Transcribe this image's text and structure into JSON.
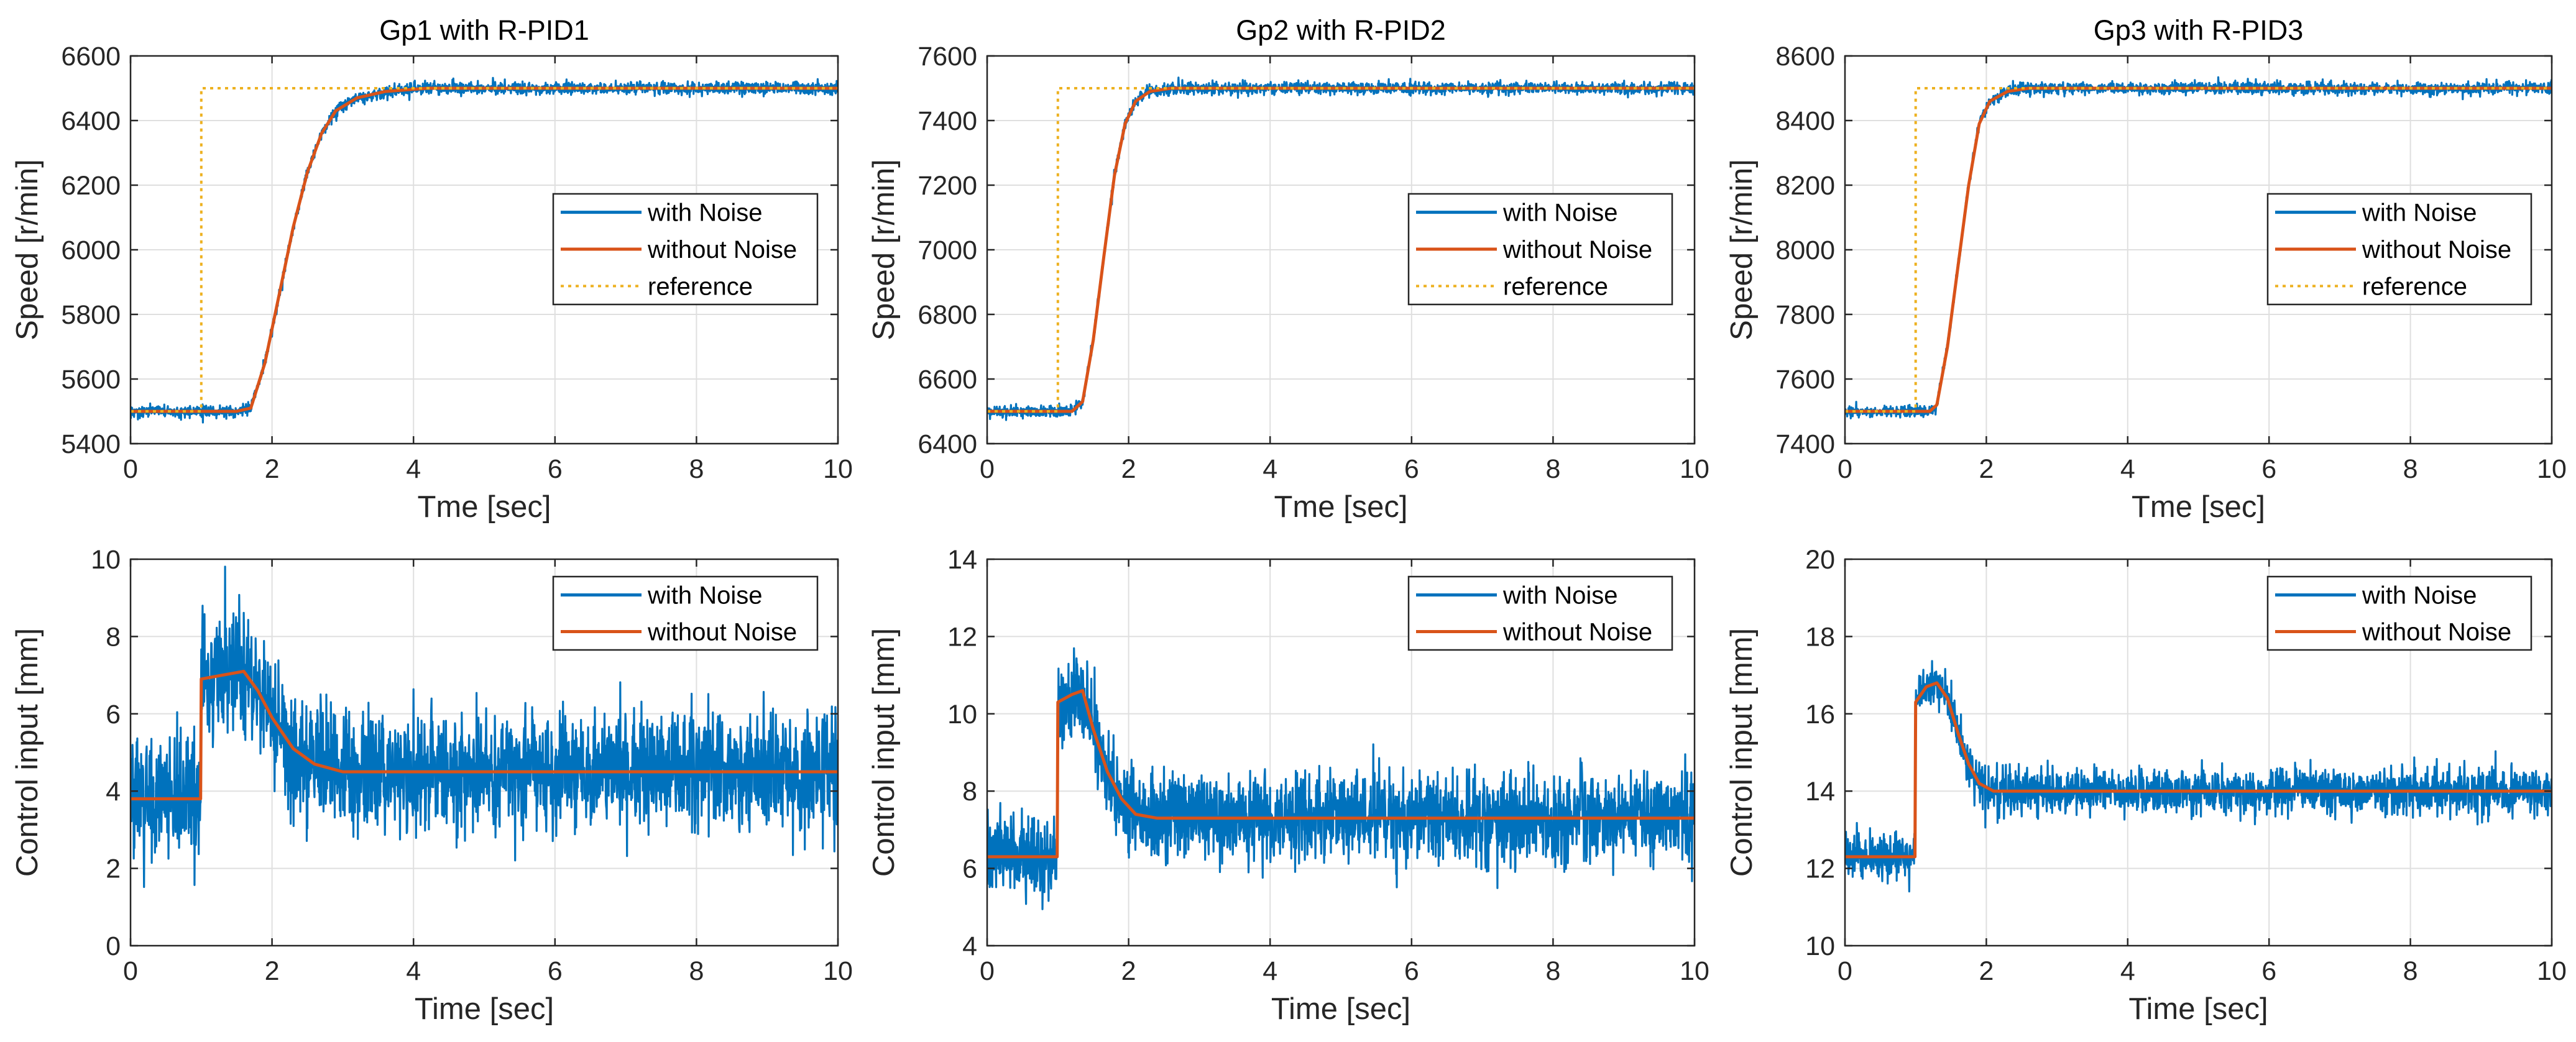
{
  "figure": {
    "layout": "2 rows x 3 columns"
  },
  "colors": {
    "with_noise": "#0072BD",
    "without_noise": "#D95319",
    "reference": "#EDB120",
    "grid": "#dfdfdf",
    "axis": "#262626"
  },
  "chart_data": [
    {
      "type": "line",
      "title": "Gp1 with R-PID1",
      "xlabel": "Tme [sec]",
      "ylabel": "Speed [r/min]",
      "xlim": [
        0,
        10
      ],
      "ylim": [
        5400,
        6600
      ],
      "xticks": [
        0,
        2,
        4,
        6,
        8,
        10
      ],
      "yticks": [
        5400,
        5600,
        5800,
        6000,
        6200,
        6400,
        6600
      ],
      "legend_position": "right",
      "series": [
        {
          "name": "with Noise",
          "style": "noisy",
          "noise_amp": 9,
          "points": [
            [
              0,
              5500
            ],
            [
              1.5,
              5500
            ],
            [
              1.7,
              5510
            ],
            [
              1.9,
              5650
            ],
            [
              2.1,
              5860
            ],
            [
              2.3,
              6070
            ],
            [
              2.5,
              6240
            ],
            [
              2.7,
              6360
            ],
            [
              2.9,
              6430
            ],
            [
              3.2,
              6470
            ],
            [
              3.6,
              6490
            ],
            [
              4.2,
              6500
            ],
            [
              10,
              6500
            ]
          ]
        },
        {
          "name": "without Noise",
          "style": "solid",
          "points": [
            [
              0,
              5500
            ],
            [
              1.5,
              5500
            ],
            [
              1.7,
              5510
            ],
            [
              1.9,
              5650
            ],
            [
              2.1,
              5860
            ],
            [
              2.3,
              6070
            ],
            [
              2.5,
              6240
            ],
            [
              2.7,
              6360
            ],
            [
              2.9,
              6430
            ],
            [
              3.2,
              6470
            ],
            [
              3.6,
              6490
            ],
            [
              4.2,
              6500
            ],
            [
              10,
              6500
            ]
          ]
        },
        {
          "name": "reference",
          "style": "dotted",
          "points": [
            [
              0,
              5500
            ],
            [
              1,
              5500
            ],
            [
              1,
              6500
            ],
            [
              10,
              6500
            ]
          ]
        }
      ]
    },
    {
      "type": "line",
      "title": "Gp2 with R-PID2",
      "xlabel": "Tme [sec]",
      "ylabel": "Speed [r/min]",
      "xlim": [
        0,
        10
      ],
      "ylim": [
        6400,
        7600
      ],
      "xticks": [
        0,
        2,
        4,
        6,
        8,
        10
      ],
      "yticks": [
        6400,
        6600,
        6800,
        7000,
        7200,
        7400,
        7600
      ],
      "legend_position": "right",
      "series": [
        {
          "name": "with Noise",
          "style": "noisy",
          "noise_amp": 9,
          "points": [
            [
              0,
              6500
            ],
            [
              1.2,
              6500
            ],
            [
              1.35,
              6530
            ],
            [
              1.5,
              6720
            ],
            [
              1.65,
              6980
            ],
            [
              1.8,
              7230
            ],
            [
              1.95,
              7390
            ],
            [
              2.1,
              7460
            ],
            [
              2.3,
              7490
            ],
            [
              2.6,
              7500
            ],
            [
              10,
              7500
            ]
          ]
        },
        {
          "name": "without Noise",
          "style": "solid",
          "points": [
            [
              0,
              6500
            ],
            [
              1.2,
              6500
            ],
            [
              1.35,
              6530
            ],
            [
              1.5,
              6720
            ],
            [
              1.65,
              6980
            ],
            [
              1.8,
              7230
            ],
            [
              1.95,
              7390
            ],
            [
              2.1,
              7460
            ],
            [
              2.3,
              7490
            ],
            [
              2.6,
              7500
            ],
            [
              10,
              7500
            ]
          ]
        },
        {
          "name": "reference",
          "style": "dotted",
          "points": [
            [
              0,
              6500
            ],
            [
              1,
              6500
            ],
            [
              1,
              7500
            ],
            [
              10,
              7500
            ]
          ]
        }
      ]
    },
    {
      "type": "line",
      "title": "Gp3 with R-PID3",
      "xlabel": "Tme [sec]",
      "ylabel": "Speed [r/min]",
      "xlim": [
        0,
        10
      ],
      "ylim": [
        7400,
        8600
      ],
      "xticks": [
        0,
        2,
        4,
        6,
        8,
        10
      ],
      "yticks": [
        7400,
        7600,
        7800,
        8000,
        8200,
        8400,
        8600
      ],
      "legend_position": "right",
      "series": [
        {
          "name": "with Noise",
          "style": "noisy",
          "noise_amp": 9,
          "points": [
            [
              0,
              7500
            ],
            [
              1.2,
              7500
            ],
            [
              1.3,
              7520
            ],
            [
              1.45,
              7700
            ],
            [
              1.6,
              7950
            ],
            [
              1.75,
              8200
            ],
            [
              1.9,
              8390
            ],
            [
              2.05,
              8460
            ],
            [
              2.3,
              8490
            ],
            [
              2.6,
              8500
            ],
            [
              10,
              8500
            ]
          ]
        },
        {
          "name": "without Noise",
          "style": "solid",
          "points": [
            [
              0,
              7500
            ],
            [
              1.2,
              7500
            ],
            [
              1.3,
              7520
            ],
            [
              1.45,
              7700
            ],
            [
              1.6,
              7950
            ],
            [
              1.75,
              8200
            ],
            [
              1.9,
              8390
            ],
            [
              2.05,
              8460
            ],
            [
              2.3,
              8490
            ],
            [
              2.6,
              8500
            ],
            [
              10,
              8500
            ]
          ]
        },
        {
          "name": "reference",
          "style": "dotted",
          "points": [
            [
              0,
              7500
            ],
            [
              1,
              7500
            ],
            [
              1,
              8500
            ],
            [
              10,
              8500
            ]
          ]
        }
      ]
    },
    {
      "type": "line",
      "title": "",
      "xlabel": "Time [sec]",
      "ylabel": "Control input [mm]",
      "xlim": [
        0,
        10
      ],
      "ylim": [
        0,
        10
      ],
      "xticks": [
        0,
        2,
        4,
        6,
        8,
        10
      ],
      "yticks": [
        0,
        2,
        4,
        6,
        8,
        10
      ],
      "legend_position": "top-right",
      "series": [
        {
          "name": "with Noise",
          "style": "noisy",
          "noise_amp": 0.75,
          "points": [
            [
              0,
              3.8
            ],
            [
              0.99,
              3.8
            ],
            [
              1.0,
              6.9
            ],
            [
              1.3,
              7.0
            ],
            [
              1.6,
              7.1
            ],
            [
              1.8,
              6.6
            ],
            [
              2.0,
              5.9
            ],
            [
              2.3,
              5.1
            ],
            [
              2.6,
              4.7
            ],
            [
              3.0,
              4.5
            ],
            [
              4.0,
              4.5
            ],
            [
              10,
              4.5
            ]
          ]
        },
        {
          "name": "without Noise",
          "style": "solid",
          "points": [
            [
              0,
              3.8
            ],
            [
              0.99,
              3.8
            ],
            [
              1.0,
              6.9
            ],
            [
              1.3,
              7.0
            ],
            [
              1.6,
              7.1
            ],
            [
              1.8,
              6.6
            ],
            [
              2.0,
              5.9
            ],
            [
              2.3,
              5.1
            ],
            [
              2.6,
              4.7
            ],
            [
              3.0,
              4.5
            ],
            [
              4.0,
              4.5
            ],
            [
              10,
              4.5
            ]
          ]
        }
      ]
    },
    {
      "type": "line",
      "title": "",
      "xlabel": "Time [sec]",
      "ylabel": "Control input [mm]",
      "xlim": [
        0,
        10
      ],
      "ylim": [
        4,
        14
      ],
      "xticks": [
        0,
        2,
        4,
        6,
        8,
        10
      ],
      "yticks": [
        4,
        6,
        8,
        10,
        12,
        14
      ],
      "legend_position": "top-right",
      "series": [
        {
          "name": "with Noise",
          "style": "noisy",
          "noise_amp": 0.55,
          "points": [
            [
              0,
              6.3
            ],
            [
              0.99,
              6.3
            ],
            [
              1.0,
              10.3
            ],
            [
              1.2,
              10.5
            ],
            [
              1.35,
              10.6
            ],
            [
              1.5,
              9.6
            ],
            [
              1.7,
              8.5
            ],
            [
              1.9,
              7.8
            ],
            [
              2.1,
              7.4
            ],
            [
              2.4,
              7.3
            ],
            [
              10,
              7.3
            ]
          ]
        },
        {
          "name": "without Noise",
          "style": "solid",
          "points": [
            [
              0,
              6.3
            ],
            [
              0.99,
              6.3
            ],
            [
              1.0,
              10.3
            ],
            [
              1.2,
              10.5
            ],
            [
              1.35,
              10.6
            ],
            [
              1.5,
              9.6
            ],
            [
              1.7,
              8.5
            ],
            [
              1.9,
              7.8
            ],
            [
              2.1,
              7.4
            ],
            [
              2.4,
              7.3
            ],
            [
              10,
              7.3
            ]
          ]
        }
      ]
    },
    {
      "type": "line",
      "title": "",
      "xlabel": "Time [sec]",
      "ylabel": "Control input [mm]",
      "xlim": [
        0,
        10
      ],
      "ylim": [
        10,
        20
      ],
      "xticks": [
        0,
        2,
        4,
        6,
        8,
        10
      ],
      "yticks": [
        10,
        12,
        14,
        16,
        18,
        20
      ],
      "legend_position": "top-right",
      "series": [
        {
          "name": "with Noise",
          "style": "noisy",
          "noise_amp": 0.28,
          "points": [
            [
              0,
              12.3
            ],
            [
              0.99,
              12.3
            ],
            [
              1.0,
              16.3
            ],
            [
              1.15,
              16.7
            ],
            [
              1.3,
              16.8
            ],
            [
              1.45,
              16.4
            ],
            [
              1.6,
              15.5
            ],
            [
              1.75,
              14.7
            ],
            [
              1.9,
              14.2
            ],
            [
              2.1,
              14.0
            ],
            [
              10,
              14.0
            ]
          ]
        },
        {
          "name": "without Noise",
          "style": "solid",
          "points": [
            [
              0,
              12.3
            ],
            [
              0.99,
              12.3
            ],
            [
              1.0,
              16.3
            ],
            [
              1.15,
              16.7
            ],
            [
              1.3,
              16.8
            ],
            [
              1.45,
              16.4
            ],
            [
              1.6,
              15.5
            ],
            [
              1.75,
              14.7
            ],
            [
              1.9,
              14.2
            ],
            [
              2.1,
              14.0
            ],
            [
              10,
              14.0
            ]
          ]
        }
      ]
    }
  ]
}
